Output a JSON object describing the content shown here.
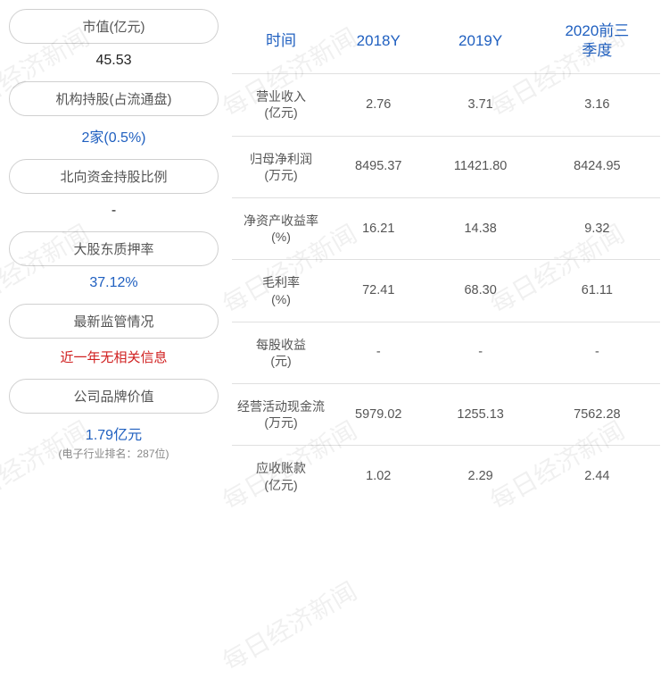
{
  "watermark_text": "每日经济新闻",
  "left_metrics": [
    {
      "label": "市值(亿元)",
      "value": "45.53",
      "value_class": "val-black",
      "note": ""
    },
    {
      "label": "机构持股(占流通盘)",
      "value": "2家(0.5%)",
      "value_class": "val-blue",
      "note": ""
    },
    {
      "label": "北向资金持股比例",
      "value": "-",
      "value_class": "val-black",
      "note": ""
    },
    {
      "label": "大股东质押率",
      "value": "37.12%",
      "value_class": "val-blue",
      "note": ""
    },
    {
      "label": "最新监管情况",
      "value": "近一年无相关信息",
      "value_class": "val-red",
      "note": ""
    },
    {
      "label": "公司品牌价值",
      "value": "1.79亿元",
      "value_class": "val-blue",
      "note": "(电子行业排名：287位)"
    }
  ],
  "table": {
    "headers": [
      "时间",
      "2018Y",
      "2019Y",
      "2020前三季度"
    ],
    "rows": [
      {
        "label": "营业收入(亿元)",
        "cells": [
          "2.76",
          "3.71",
          "3.16"
        ]
      },
      {
        "label": "归母净利润(万元)",
        "cells": [
          "8495.37",
          "11421.80",
          "8424.95"
        ]
      },
      {
        "label": "净资产收益率(%)",
        "cells": [
          "16.21",
          "14.38",
          "9.32"
        ]
      },
      {
        "label": "毛利率(%)",
        "cells": [
          "72.41",
          "68.30",
          "61.11"
        ]
      },
      {
        "label": "每股收益(元)",
        "cells": [
          "-",
          "-",
          "-"
        ]
      },
      {
        "label": "经营活动现金流(万元)",
        "cells": [
          "5979.02",
          "1255.13",
          "7562.28"
        ]
      },
      {
        "label": "应收账款(亿元)",
        "cells": [
          "1.02",
          "2.29",
          "2.44"
        ]
      }
    ]
  }
}
